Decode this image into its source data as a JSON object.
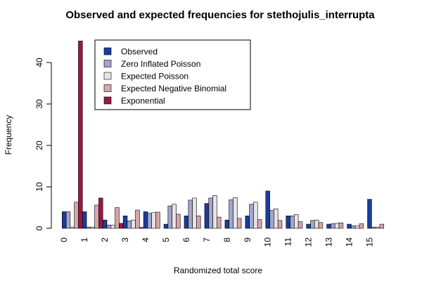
{
  "chart_data": {
    "type": "bar",
    "title": "Observed and expected frequencies for stethojulis_interrupta",
    "xlabel": "Randomized total score",
    "ylabel": "Frequency",
    "categories": [
      "0",
      "1",
      "2",
      "3",
      "4",
      "5",
      "6",
      "7",
      "8",
      "9",
      "10",
      "11",
      "12",
      "13",
      "14",
      "15"
    ],
    "ylim": [
      0,
      45
    ],
    "yticks": [
      0,
      10,
      20,
      30,
      40
    ],
    "grid": false,
    "legend_position": "top-left",
    "series": [
      {
        "name": "Observed",
        "color": "#1a3d99",
        "values": [
          4,
          4,
          2,
          3,
          4,
          1,
          3,
          6,
          2,
          3,
          9,
          3,
          1,
          1,
          1,
          7
        ]
      },
      {
        "name": "Zero Inflated Poisson",
        "color": "#a3a5c8",
        "values": [
          4,
          0.3,
          0.8,
          1.8,
          3.6,
          5.4,
          6.8,
          7.3,
          6.9,
          5.8,
          4.3,
          3.0,
          1.9,
          1.1,
          0.6,
          0.3
        ]
      },
      {
        "name": "Expected Poisson",
        "color": "#e5e5e8",
        "values": [
          0.3,
          0.3,
          0.8,
          2.0,
          3.8,
          5.8,
          7.3,
          7.9,
          7.4,
          6.3,
          4.7,
          3.3,
          2.0,
          1.2,
          0.6,
          0.3
        ]
      },
      {
        "name": "Expected Negative Binomial",
        "color": "#d6a6aa",
        "values": [
          6.3,
          5.6,
          5.0,
          4.4,
          3.9,
          3.4,
          3.0,
          2.7,
          2.4,
          2.1,
          1.9,
          1.6,
          1.4,
          1.3,
          1.1,
          1.0
        ]
      },
      {
        "name": "Exponential",
        "color": "#99193f",
        "values": [
          45.2,
          7.3,
          1.2,
          0.2,
          0,
          0,
          0,
          0,
          0,
          0,
          0,
          0,
          0,
          0,
          0,
          0
        ]
      }
    ]
  }
}
